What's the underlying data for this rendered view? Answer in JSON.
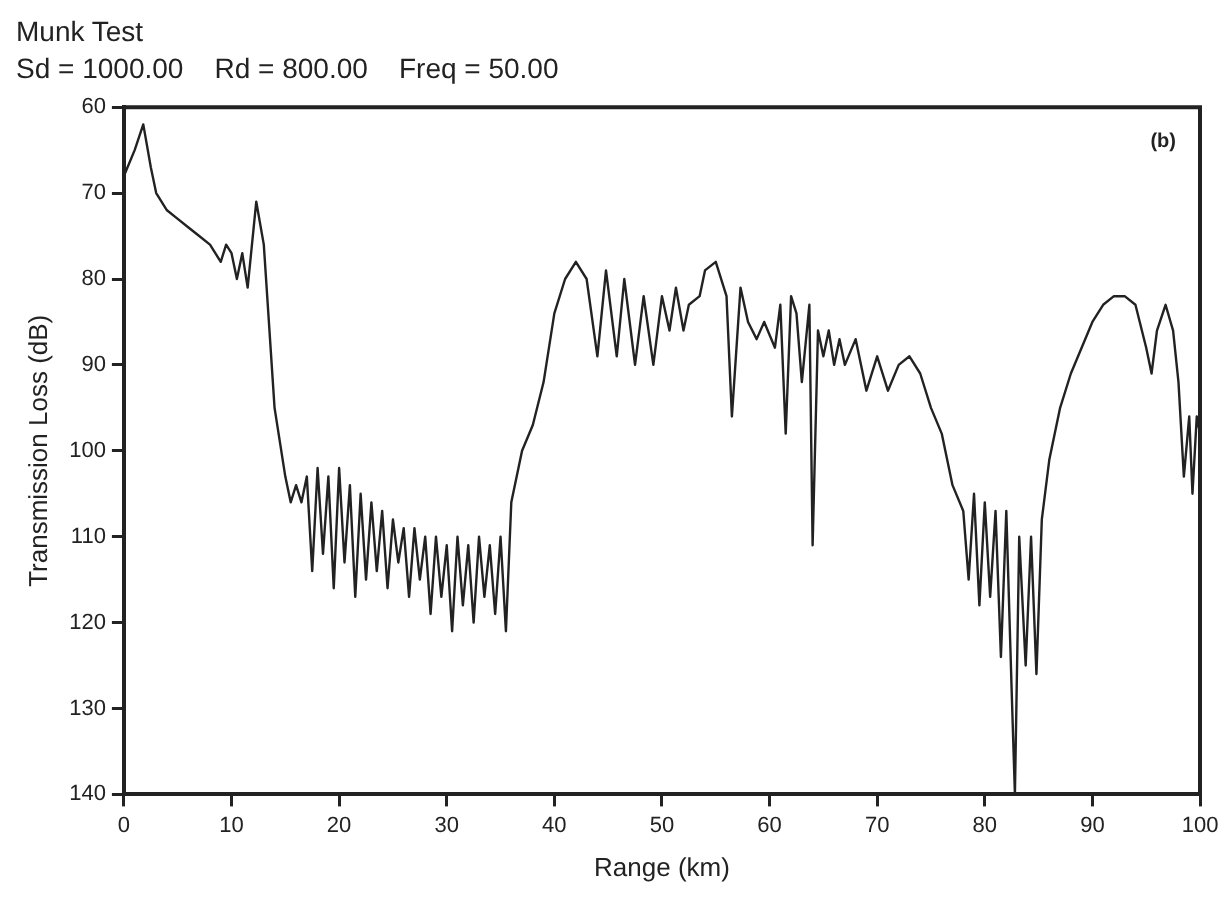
{
  "chart_data": {
    "type": "line",
    "title": "Munk Test",
    "subtitle": "Sd = 1000.00    Rd = 800.00    Freq = 50.00",
    "xlabel": "Range (km)",
    "ylabel": "Transmission Loss (dB)",
    "annotations": [
      "(b)"
    ],
    "xlim": [
      0,
      100
    ],
    "xticks": [
      0,
      10,
      20,
      30,
      40,
      50,
      60,
      70,
      80,
      90,
      100
    ],
    "ylim": [
      140,
      60
    ],
    "yticks": [
      60,
      70,
      80,
      90,
      100,
      110,
      120,
      130,
      140
    ],
    "grid": false,
    "legend": false,
    "marker": "none",
    "line_style": "solid",
    "series": [
      {
        "color": "#222222",
        "x": [
          0,
          1,
          1.8,
          2.5,
          3,
          4,
          5,
          6,
          7,
          8,
          9,
          9.5,
          10,
          10.5,
          11,
          11.5,
          12.3,
          13,
          14,
          15,
          15.5,
          16,
          16.5,
          17,
          17.5,
          18,
          18.5,
          19,
          19.5,
          20,
          20.5,
          21,
          21.5,
          22,
          22.5,
          23,
          23.5,
          24,
          24.5,
          25,
          25.5,
          26,
          26.5,
          27,
          27.5,
          28,
          28.5,
          29,
          29.5,
          30,
          30.5,
          31,
          31.5,
          32,
          32.5,
          33,
          33.5,
          34,
          34.5,
          35,
          35.5,
          36,
          37,
          38,
          39,
          40,
          41,
          42,
          43,
          44,
          44.8,
          45.8,
          46.5,
          47.5,
          48.3,
          49.2,
          50,
          50.7,
          51.3,
          52,
          52.5,
          53.5,
          54,
          55,
          56,
          56.5,
          57.3,
          58,
          58.8,
          59.5,
          60.5,
          61,
          61.5,
          62,
          62.5,
          63,
          63.7,
          64,
          64.5,
          65,
          65.5,
          66,
          66.5,
          67,
          68,
          69,
          70,
          71,
          72,
          73,
          74,
          75,
          76,
          77,
          78,
          78.5,
          79,
          79.5,
          80,
          80.5,
          81,
          81.5,
          82,
          82.5,
          82.8,
          83.2,
          83.8,
          84.3,
          84.8,
          85.3,
          86,
          87,
          88,
          89,
          90,
          91,
          92,
          93,
          94,
          95,
          95.5,
          96,
          96.8,
          97.5,
          98,
          98.5,
          99,
          99.3,
          99.7,
          100
        ],
        "values": [
          68,
          65,
          62,
          67,
          70,
          72,
          73,
          74,
          75,
          76,
          78,
          76,
          77,
          80,
          77,
          81,
          71,
          76,
          95,
          103,
          106,
          104,
          106,
          103,
          114,
          102,
          112,
          103,
          116,
          102,
          113,
          104,
          117,
          105,
          115,
          106,
          114,
          107,
          116,
          108,
          113,
          109,
          117,
          109,
          115,
          110,
          119,
          110,
          117,
          111,
          121,
          110,
          118,
          111,
          120,
          110,
          117,
          111,
          119,
          110,
          121,
          106,
          100,
          97,
          92,
          84,
          80,
          78,
          80,
          89,
          79,
          89,
          80,
          90,
          82,
          90,
          82,
          86,
          81,
          86,
          83,
          82,
          79,
          78,
          82,
          96,
          81,
          85,
          87,
          85,
          88,
          83,
          98,
          82,
          84,
          92,
          83,
          111,
          86,
          89,
          86,
          90,
          87,
          90,
          87,
          93,
          89,
          93,
          90,
          89,
          91,
          95,
          98,
          104,
          107,
          115,
          105,
          118,
          106,
          117,
          107,
          124,
          107,
          128,
          140,
          110,
          125,
          110,
          126,
          108,
          101,
          95,
          91,
          88,
          85,
          83,
          82,
          82,
          83,
          88,
          91,
          86,
          83,
          86,
          92,
          103,
          96,
          105,
          96,
          98
        ]
      }
    ]
  }
}
